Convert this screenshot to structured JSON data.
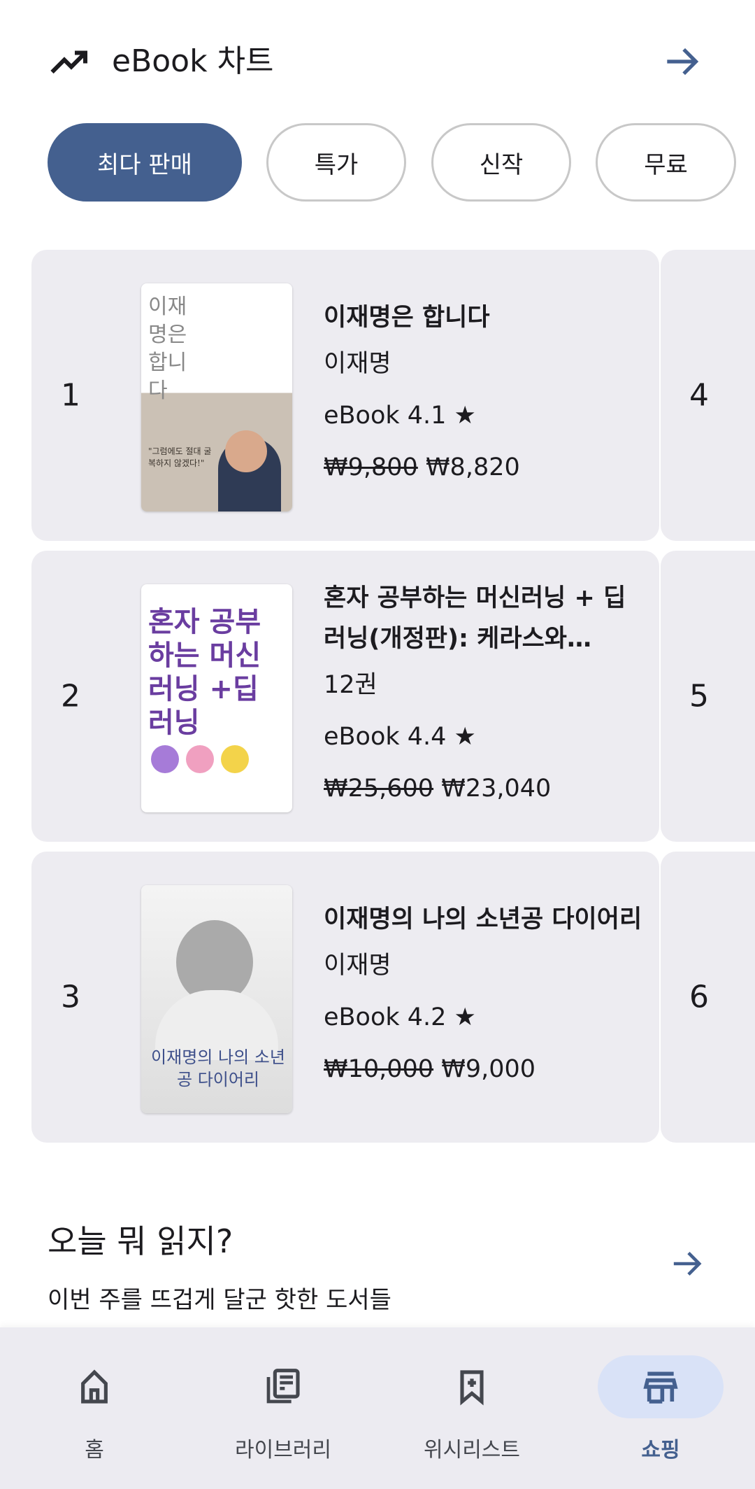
{
  "header": {
    "title": "eBook 차트",
    "icon": "trending-up-icon",
    "more_icon": "arrow-right-icon"
  },
  "chips": [
    {
      "label": "최다 판매",
      "active": true
    },
    {
      "label": "특가"
    },
    {
      "label": "신작"
    },
    {
      "label": "무료"
    }
  ],
  "books": [
    {
      "rank": "1",
      "title": "이재명은 합니다",
      "author": "이재명",
      "rating": "eBook 4.1 ★",
      "original_price": "₩9,800",
      "price": "₩8,820",
      "cover_text": "이재명은 합니다",
      "cover_quote": "\"그럼에도 절대 굴복하지 않겠다!\""
    },
    {
      "rank": "2",
      "title": "혼자 공부하는 머신러닝 + 딥러닝(개정판): 케라스와…",
      "author": "12권",
      "rating": "eBook 4.4 ★",
      "original_price": "₩25,600",
      "price": "₩23,040",
      "cover_text": "혼자 공부하는 머신러닝 +딥러닝"
    },
    {
      "rank": "3",
      "title": "이재명의 나의 소년공 다이어리",
      "author": "이재명",
      "rating": "eBook 4.2 ★",
      "original_price": "₩10,000",
      "price": "₩9,000",
      "cover_text": "이재명의 나의 소년공 다이어리"
    }
  ],
  "peek_ranks": [
    "4",
    "5",
    "6"
  ],
  "section": {
    "title": "오늘 뭐 읽지?",
    "subtitle": "이번 주를 뜨겁게 달군 핫한 도서들"
  },
  "nav": [
    {
      "label": "홈",
      "icon": "home-icon"
    },
    {
      "label": "라이브러리",
      "icon": "library-icon"
    },
    {
      "label": "위시리스트",
      "icon": "bookmark-add-icon"
    },
    {
      "label": "쇼핑",
      "icon": "store-icon",
      "active": true
    }
  ],
  "colors": {
    "accent": "#44608f",
    "card_bg": "#edecf1",
    "nav_active_pill": "#d9e2f7"
  }
}
